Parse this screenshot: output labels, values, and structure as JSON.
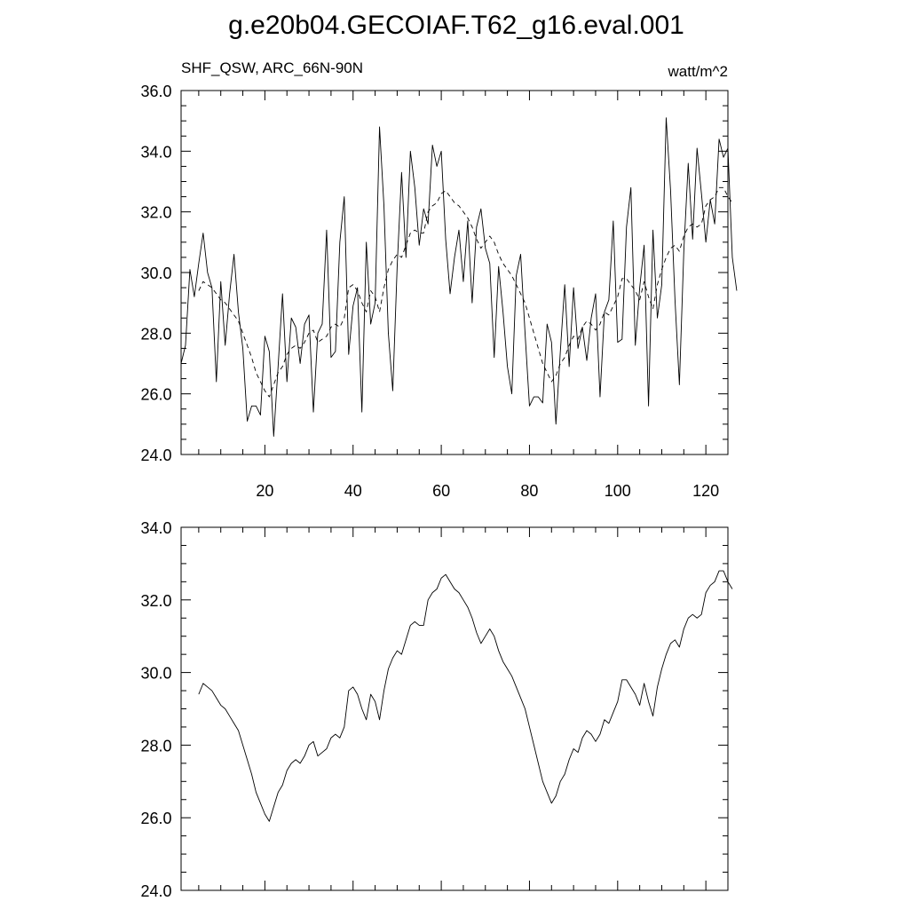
{
  "title": "g.e20b04.GECOIAF.T62_g16.eval.001",
  "subtitle_left": "SHF_QSW, ARC_66N-90N",
  "subtitle_right": "watt/m^2",
  "chart_data": [
    {
      "type": "line",
      "xlim": [
        1,
        125
      ],
      "ylim": [
        24.0,
        36.0
      ],
      "x_ticks": [
        20,
        40,
        60,
        80,
        100,
        120
      ],
      "y_ticks": [
        "24.0",
        "26.0",
        "28.0",
        "30.0",
        "32.0",
        "34.0",
        "36.0"
      ],
      "series": [
        {
          "style": "solid",
          "x_start": 1,
          "values": [
            27.0,
            27.6,
            30.1,
            29.2,
            30.3,
            31.3,
            30.0,
            29.5,
            26.4,
            29.7,
            27.6,
            29.3,
            30.6,
            28.7,
            27.5,
            25.1,
            25.6,
            25.6,
            25.3,
            27.9,
            27.4,
            24.6,
            26.9,
            29.3,
            26.4,
            28.5,
            28.2,
            27.0,
            28.3,
            28.6,
            25.4,
            28.0,
            28.3,
            31.4,
            27.2,
            27.4,
            31.0,
            32.5,
            27.3,
            28.9,
            29.5,
            25.4,
            31.0,
            28.3,
            29.0,
            34.8,
            32.2,
            28.0,
            26.1,
            30.2,
            33.3,
            30.5,
            34.0,
            32.8,
            30.9,
            32.1,
            31.6,
            34.2,
            33.5,
            34.0,
            31.1,
            29.3,
            30.5,
            31.4,
            29.7,
            31.7,
            29.0,
            31.5,
            32.1,
            30.8,
            30.3,
            27.2,
            30.2,
            28.7,
            26.9,
            26.0,
            29.9,
            30.6,
            28.0,
            25.6,
            25.9,
            25.9,
            25.7,
            28.3,
            27.7,
            25.0,
            27.4,
            29.6,
            26.9,
            29.5,
            27.5,
            28.2,
            27.1,
            28.5,
            29.3,
            25.9,
            28.7,
            29.1,
            31.7,
            27.7,
            27.8,
            31.5,
            32.8,
            27.6,
            29.5,
            30.9,
            25.6,
            31.4,
            28.5,
            29.6,
            35.1,
            32.7,
            29.1,
            26.3,
            30.7,
            33.6,
            31.1,
            34.1,
            32.6,
            31.0,
            32.4,
            31.6,
            34.4,
            33.8,
            34.1,
            30.5,
            29.4
          ]
        },
        {
          "style": "dashed",
          "x_start": 5,
          "values": [
            29.4,
            29.7,
            29.6,
            29.5,
            29.3,
            29.1,
            29.0,
            28.8,
            28.6,
            28.4,
            28.0,
            27.6,
            27.2,
            26.7,
            26.4,
            26.1,
            25.9,
            26.3,
            26.7,
            26.9,
            27.3,
            27.5,
            27.6,
            27.5,
            27.7,
            28.0,
            28.1,
            27.7,
            27.8,
            27.9,
            28.2,
            28.3,
            28.2,
            28.5,
            29.5,
            29.6,
            29.4,
            29.0,
            28.7,
            29.4,
            29.2,
            28.7,
            29.5,
            30.1,
            30.4,
            30.6,
            30.5,
            30.9,
            31.3,
            31.4,
            31.3,
            31.3,
            32.0,
            32.2,
            32.3,
            32.6,
            32.7,
            32.5,
            32.3,
            32.2,
            32.0,
            31.8,
            31.5,
            31.1,
            30.8,
            31.0,
            31.2,
            31.0,
            30.6,
            30.3,
            30.1,
            29.9,
            29.6,
            29.3,
            29.0,
            28.5,
            28.0,
            27.5,
            27.0,
            26.7,
            26.4,
            26.6,
            27.0,
            27.2,
            27.6,
            27.9,
            27.8,
            28.2,
            28.4,
            28.3,
            28.1,
            28.3,
            28.7,
            28.6,
            28.9,
            29.2,
            29.8,
            29.8,
            29.6,
            29.4,
            29.1,
            29.7,
            29.2,
            28.8,
            29.6,
            30.1,
            30.5,
            30.8,
            30.9,
            30.7,
            31.2,
            31.5,
            31.6,
            31.5,
            31.6,
            32.2,
            32.4,
            32.5,
            32.8,
            32.8,
            32.5,
            32.3
          ]
        }
      ]
    },
    {
      "type": "line",
      "xlim": [
        1,
        125
      ],
      "ylim": [
        24.0,
        34.0
      ],
      "y_ticks": [
        "24.0",
        "26.0",
        "28.0",
        "30.0",
        "32.0",
        "34.0"
      ],
      "series": [
        {
          "style": "solid",
          "x_start": 5,
          "values": [
            29.4,
            29.7,
            29.6,
            29.5,
            29.3,
            29.1,
            29.0,
            28.8,
            28.6,
            28.4,
            28.0,
            27.6,
            27.2,
            26.7,
            26.4,
            26.1,
            25.9,
            26.3,
            26.7,
            26.9,
            27.3,
            27.5,
            27.6,
            27.5,
            27.7,
            28.0,
            28.1,
            27.7,
            27.8,
            27.9,
            28.2,
            28.3,
            28.2,
            28.5,
            29.5,
            29.6,
            29.4,
            29.0,
            28.7,
            29.4,
            29.2,
            28.7,
            29.5,
            30.1,
            30.4,
            30.6,
            30.5,
            30.9,
            31.3,
            31.4,
            31.3,
            31.3,
            32.0,
            32.2,
            32.3,
            32.6,
            32.7,
            32.5,
            32.3,
            32.2,
            32.0,
            31.8,
            31.5,
            31.1,
            30.8,
            31.0,
            31.2,
            31.0,
            30.6,
            30.3,
            30.1,
            29.9,
            29.6,
            29.3,
            29.0,
            28.5,
            28.0,
            27.5,
            27.0,
            26.7,
            26.4,
            26.6,
            27.0,
            27.2,
            27.6,
            27.9,
            27.8,
            28.2,
            28.4,
            28.3,
            28.1,
            28.3,
            28.7,
            28.6,
            28.9,
            29.2,
            29.8,
            29.8,
            29.6,
            29.4,
            29.1,
            29.7,
            29.2,
            28.8,
            29.6,
            30.1,
            30.5,
            30.8,
            30.9,
            30.7,
            31.2,
            31.5,
            31.6,
            31.5,
            31.6,
            32.2,
            32.4,
            32.5,
            32.8,
            32.8,
            32.5,
            32.3
          ]
        }
      ]
    }
  ]
}
